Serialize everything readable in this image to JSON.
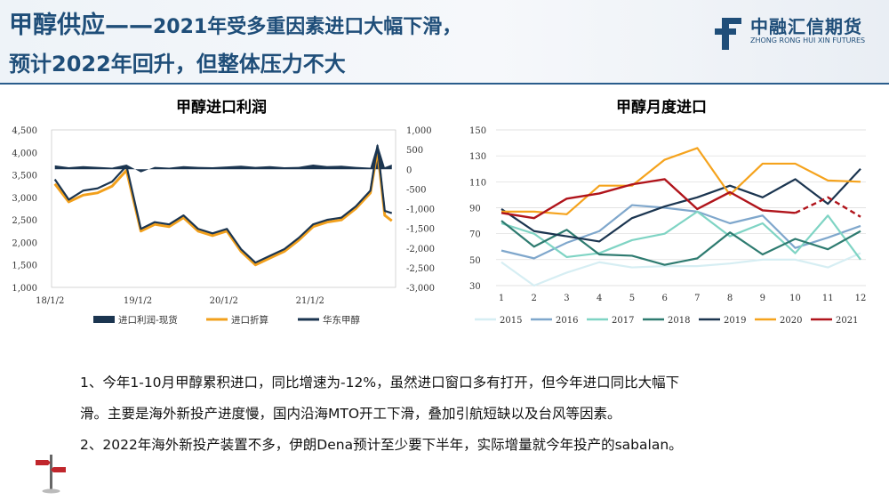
{
  "header": {
    "title_line1_prefix": "甲醇供应——",
    "title_line1_suffix": "2021年受多重因素进口大幅下滑，",
    "title_line2": "预计2022年回升，但整体压力不大",
    "logo_cn": "中融汇信期货",
    "logo_en": "ZHONG RONG HUI XIN FUTURES",
    "brand_color": "#1f4e79"
  },
  "chart_data": [
    {
      "type": "line",
      "title": "甲醇进口利润",
      "x_ticks": [
        "18/1/2",
        "19/1/2",
        "20/1/2",
        "21/1/2"
      ],
      "y_left_ticks": [
        "4,500",
        "4,000",
        "3,500",
        "3,000",
        "2,500",
        "2,000",
        "1,500",
        "1,000"
      ],
      "y_right_ticks": [
        "1,000",
        "500",
        "0",
        "-500",
        "-1,000",
        "-1,500",
        "-2,000",
        "-2,500",
        "-3,000"
      ],
      "ylim_left": [
        1000,
        4500
      ],
      "ylim_right": [
        -3000,
        1000
      ],
      "legend_position": "bottom",
      "series": [
        {
          "name": "进口利润-现货",
          "axis": "right",
          "kind": "area",
          "color": "#1b3550",
          "x": [
            "2018-01",
            "2018-03",
            "2018-05",
            "2018-07",
            "2018-09",
            "2018-11",
            "2019-01",
            "2019-03",
            "2019-05",
            "2019-07",
            "2019-09",
            "2019-11",
            "2020-01",
            "2020-03",
            "2020-05",
            "2020-07",
            "2020-09",
            "2020-11",
            "2021-01",
            "2021-03",
            "2021-05",
            "2021-07",
            "2021-09",
            "2021-10",
            "2021-11",
            "2021-12"
          ],
          "values": [
            100,
            50,
            80,
            60,
            40,
            120,
            -80,
            60,
            40,
            80,
            60,
            50,
            70,
            90,
            60,
            80,
            50,
            60,
            120,
            80,
            90,
            60,
            40,
            650,
            50,
            120
          ]
        },
        {
          "name": "进口折算",
          "axis": "left",
          "kind": "line",
          "color": "#f2a01c",
          "x": [
            "2018-01",
            "2018-03",
            "2018-05",
            "2018-07",
            "2018-09",
            "2018-11",
            "2019-01",
            "2019-03",
            "2019-05",
            "2019-07",
            "2019-09",
            "2019-11",
            "2020-01",
            "2020-03",
            "2020-05",
            "2020-07",
            "2020-09",
            "2020-11",
            "2021-01",
            "2021-03",
            "2021-05",
            "2021-07",
            "2021-09",
            "2021-10",
            "2021-11",
            "2021-12"
          ],
          "values": [
            3300,
            2900,
            3050,
            3100,
            3250,
            3600,
            2250,
            2400,
            2350,
            2550,
            2250,
            2150,
            2250,
            1800,
            1500,
            1650,
            1800,
            2050,
            2350,
            2450,
            2500,
            2750,
            3100,
            4050,
            2600,
            2480
          ]
        },
        {
          "name": "华东甲醇",
          "axis": "left",
          "kind": "line",
          "color": "#1b3550",
          "x": [
            "2018-01",
            "2018-03",
            "2018-05",
            "2018-07",
            "2018-09",
            "2018-11",
            "2019-01",
            "2019-03",
            "2019-05",
            "2019-07",
            "2019-09",
            "2019-11",
            "2020-01",
            "2020-03",
            "2020-05",
            "2020-07",
            "2020-09",
            "2020-11",
            "2021-01",
            "2021-03",
            "2021-05",
            "2021-07",
            "2021-09",
            "2021-10",
            "2021-11",
            "2021-12"
          ],
          "values": [
            3400,
            2950,
            3150,
            3200,
            3350,
            3700,
            2300,
            2450,
            2400,
            2600,
            2300,
            2200,
            2300,
            1850,
            1550,
            1700,
            1850,
            2100,
            2400,
            2500,
            2550,
            2800,
            3150,
            4150,
            2700,
            2650
          ]
        }
      ]
    },
    {
      "type": "line",
      "title": "甲醇月度进口",
      "categories": [
        "1",
        "2",
        "3",
        "4",
        "5",
        "6",
        "7",
        "8",
        "9",
        "10",
        "11",
        "12"
      ],
      "y_ticks": [
        "150",
        "130",
        "110",
        "90",
        "70",
        "50",
        "30"
      ],
      "ylim": [
        30,
        150
      ],
      "legend_position": "bottom",
      "series": [
        {
          "name": "2015",
          "color": "#d6eef3",
          "values": [
            48,
            30,
            40,
            48,
            44,
            45,
            45,
            47,
            50,
            50,
            44,
            55
          ]
        },
        {
          "name": "2016",
          "color": "#7fa7cc",
          "values": [
            57,
            51,
            63,
            72,
            92,
            90,
            87,
            78,
            84,
            59,
            67,
            76
          ]
        },
        {
          "name": "2017",
          "color": "#7fd4c4",
          "values": [
            78,
            70,
            52,
            55,
            65,
            70,
            87,
            68,
            78,
            55,
            84,
            50
          ]
        },
        {
          "name": "2018",
          "color": "#2e7b70",
          "values": [
            80,
            60,
            73,
            54,
            53,
            46,
            51,
            71,
            54,
            66,
            58,
            72
          ]
        },
        {
          "name": "2019",
          "color": "#1b3550",
          "values": [
            89,
            72,
            68,
            64,
            82,
            91,
            98,
            107,
            98,
            112,
            93,
            120
          ]
        },
        {
          "name": "2020",
          "color": "#f5a31d",
          "values": [
            87,
            87,
            85,
            107,
            107,
            127,
            136,
            100,
            124,
            124,
            111,
            110
          ]
        },
        {
          "name": "2021",
          "color": "#b0141b",
          "values": [
            86,
            82,
            97,
            101,
            108,
            112,
            89,
            102,
            88,
            86,
            98,
            83
          ],
          "dashed_from_index": 9
        }
      ]
    }
  ],
  "notes": {
    "line1": "1、今年1-10月甲醇累积进口，同比增速为-12%，虽然进口窗口多有打开，但今年进口同比大幅下",
    "line2": "滑。主要是海外新投产进度慢，国内沿海MTO开工下滑，叠加引航短缺以及台风等因素。",
    "line3": "2、2022年海外新投产装置不多，伊朗Dena预计至少要下半年，实际增量就今年投产的sabalan。"
  }
}
